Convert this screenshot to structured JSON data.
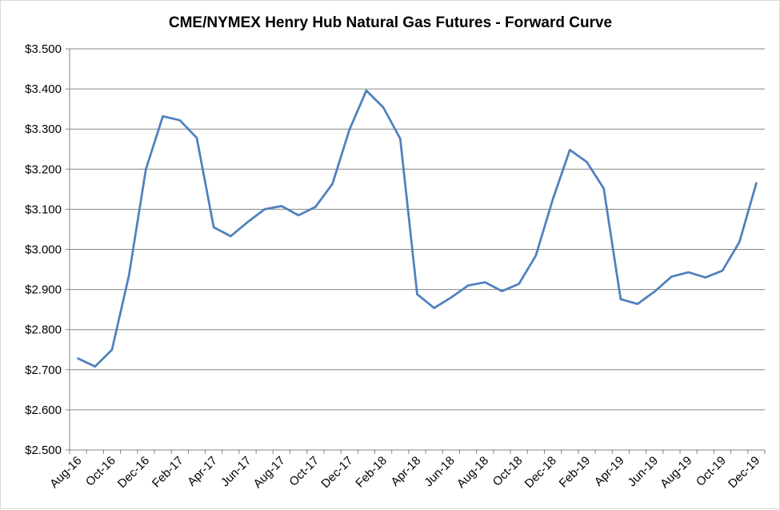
{
  "chart_data": {
    "type": "line",
    "title": "CME/NYMEX Henry Hub Natural Gas Futures - Forward Curve",
    "xlabel": "",
    "ylabel": "",
    "ylim": [
      2.5,
      3.5
    ],
    "y_ticks": [
      "$2.500",
      "$2.600",
      "$2.700",
      "$2.800",
      "$2.900",
      "$3.000",
      "$3.100",
      "$3.200",
      "$3.300",
      "$3.400",
      "$3.500"
    ],
    "y_tick_values": [
      2.5,
      2.6,
      2.7,
      2.8,
      2.9,
      3.0,
      3.1,
      3.2,
      3.3,
      3.4,
      3.5
    ],
    "x": [
      "Aug-16",
      "Sep-16",
      "Oct-16",
      "Nov-16",
      "Dec-16",
      "Jan-17",
      "Feb-17",
      "Mar-17",
      "Apr-17",
      "May-17",
      "Jun-17",
      "Jul-17",
      "Aug-17",
      "Sep-17",
      "Oct-17",
      "Nov-17",
      "Dec-17",
      "Jan-18",
      "Feb-18",
      "Mar-18",
      "Apr-18",
      "May-18",
      "Jun-18",
      "Jul-18",
      "Aug-18",
      "Sep-18",
      "Oct-18",
      "Nov-18",
      "Dec-18",
      "Jan-19",
      "Feb-19",
      "Mar-19",
      "Apr-19",
      "May-19",
      "Jun-19",
      "Jul-19",
      "Aug-19",
      "Sep-19",
      "Oct-19",
      "Nov-19",
      "Dec-19"
    ],
    "x_tick_labels": [
      "Aug-16",
      "Oct-16",
      "Dec-16",
      "Feb-17",
      "Apr-17",
      "Jun-17",
      "Aug-17",
      "Oct-17",
      "Dec-17",
      "Feb-18",
      "Apr-18",
      "Jun-18",
      "Aug-18",
      "Oct-18",
      "Dec-18",
      "Feb-19",
      "Apr-19",
      "Jun-19",
      "Aug-19",
      "Oct-19",
      "Dec-19"
    ],
    "series": [
      {
        "values": [
          2.728,
          2.708,
          2.75,
          2.935,
          3.2,
          3.332,
          3.322,
          3.278,
          3.055,
          3.033,
          3.068,
          3.1,
          3.108,
          3.085,
          3.106,
          3.163,
          3.298,
          3.396,
          3.354,
          3.276,
          2.888,
          2.854,
          2.88,
          2.91,
          2.918,
          2.896,
          2.914,
          2.985,
          3.125,
          3.248,
          3.218,
          3.152,
          2.876,
          2.864,
          2.895,
          2.932,
          2.943,
          2.93,
          2.947,
          3.018,
          3.165
        ]
      }
    ],
    "colors": {
      "line": "#4f81bd",
      "grid": "#868686",
      "axis": "#868686"
    },
    "grid": true,
    "legend": "none"
  }
}
